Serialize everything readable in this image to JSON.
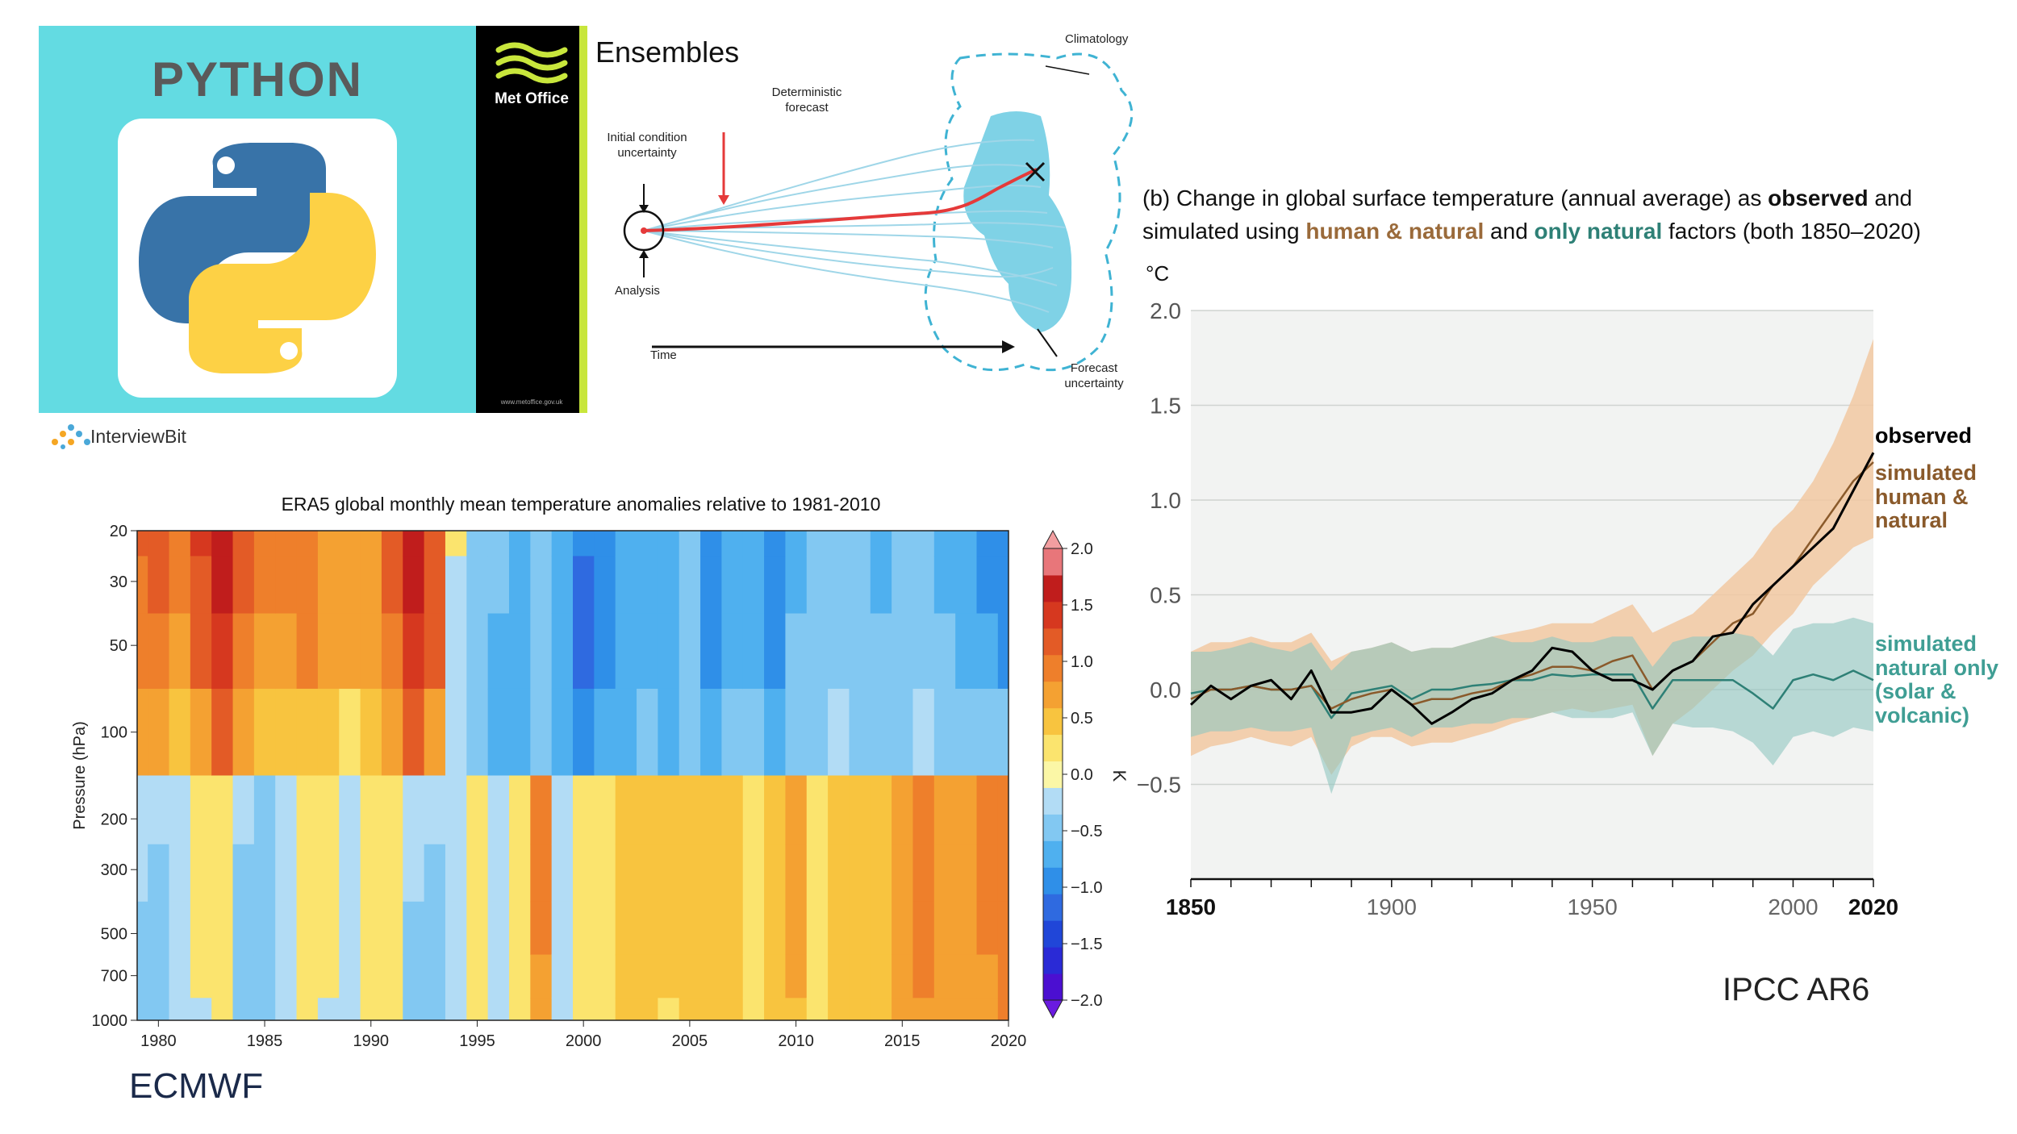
{
  "python_panel": {
    "title": "PYTHON"
  },
  "interviewbit": {
    "brand": "InterviewBit"
  },
  "met_office_panel": {
    "brand": "Met Office",
    "url": "www.metoffice.gov.uk",
    "title": "Ensembles",
    "labels": {
      "climatology": "Climatology",
      "deterministic": "Deterministic forecast",
      "initial": "Initial condition uncertainty",
      "analysis": "Analysis",
      "time": "Time",
      "forecast_uncertainty": "Forecast uncertainty"
    }
  },
  "era5_panel": {
    "source_label": "ECMWF",
    "colorbar_unit": "K"
  },
  "ipcc_panel": {
    "caption_line1_a": "(b) Change in global surface temperature (annual average) as ",
    "caption_line1_b": "observed",
    "caption_line1_c": " and",
    "caption_line2_a": "simulated using ",
    "caption_line2_b": "human & natural",
    "caption_line2_c": " and ",
    "caption_line2_d": "only natural",
    "caption_line2_e": " factors (both 1850–2020)",
    "unit": "°C",
    "legend_observed": "observed",
    "legend_human_1": "simulated",
    "legend_human_2": "human &",
    "legend_human_3": "natural",
    "legend_natural_1": "simulated",
    "legend_natural_2": "natural only",
    "legend_natural_3": "(solar &",
    "legend_natural_4": "volcanic)",
    "source_label": "IPCC AR6"
  },
  "chart_data": [
    {
      "type": "heatmap",
      "title": "ERA5 global monthly mean temperature anomalies relative to 1981-2010",
      "xlabel": "",
      "ylabel": "Pressure (hPa)",
      "xlim": [
        1979,
        2020
      ],
      "xticks": [
        1980,
        1985,
        1990,
        1995,
        2000,
        2005,
        2010,
        2015,
        2020
      ],
      "yticks": [
        20,
        30,
        50,
        100,
        200,
        300,
        500,
        700,
        1000
      ],
      "y_scale": "log",
      "y_inverted": true,
      "colorbar": {
        "label": "K",
        "ticks": [
          2.0,
          1.5,
          1.0,
          0.5,
          0.0,
          -0.5,
          -1.0,
          -1.5,
          -2.0
        ],
        "tick_labels": [
          "2.0",
          "1.5",
          "1.0",
          "0.5",
          "0.0",
          "−0.5",
          "−1.0",
          "−1.5",
          "−2.0"
        ],
        "levels": [
          -2.0,
          -1.75,
          -1.5,
          -1.25,
          -1.0,
          -0.75,
          -0.5,
          -0.25,
          0.0,
          0.25,
          0.5,
          0.75,
          1.0,
          1.25,
          1.5,
          1.75,
          2.0
        ],
        "colors": [
          "#4b0fd1",
          "#2a2ad6",
          "#2046d8",
          "#2f6ae0",
          "#2f8fe8",
          "#4fb0ef",
          "#82c8f2",
          "#b2dcf5",
          "#fbf7a6",
          "#fbe46e",
          "#f8c43f",
          "#f4a132",
          "#ee7f2b",
          "#e35b26",
          "#d6381f",
          "#c01d1c",
          "#e8767a"
        ]
      },
      "years": [
        1979,
        1980,
        1981,
        1982,
        1983,
        1984,
        1985,
        1986,
        1987,
        1988,
        1989,
        1990,
        1991,
        1992,
        1993,
        1994,
        1995,
        1996,
        1997,
        1998,
        1999,
        2000,
        2001,
        2002,
        2003,
        2004,
        2005,
        2006,
        2007,
        2008,
        2009,
        2010,
        2011,
        2012,
        2013,
        2014,
        2015,
        2016,
        2017,
        2018,
        2019,
        2020
      ],
      "levels_hpa": [
        20,
        30,
        50,
        100,
        200,
        300,
        500,
        700,
        1000
      ],
      "anomaly_K_by_year_level": [
        [
          1.0,
          0.9,
          0.8,
          0.5,
          -0.1,
          -0.2,
          -0.3,
          -0.3,
          -0.3
        ],
        [
          1.1,
          1.0,
          0.9,
          0.6,
          -0.1,
          -0.3,
          -0.3,
          -0.3,
          -0.3
        ],
        [
          0.9,
          0.9,
          0.7,
          0.4,
          -0.1,
          -0.2,
          -0.2,
          -0.2,
          -0.2
        ],
        [
          1.3,
          1.2,
          1.0,
          0.6,
          0.1,
          0.1,
          0.0,
          0.0,
          -0.1
        ],
        [
          1.7,
          1.6,
          1.4,
          1.0,
          0.2,
          0.2,
          0.1,
          0.1,
          0.0
        ],
        [
          1.2,
          1.1,
          0.9,
          0.5,
          -0.2,
          -0.3,
          -0.3,
          -0.3,
          -0.3
        ],
        [
          0.9,
          0.8,
          0.7,
          0.3,
          -0.3,
          -0.3,
          -0.3,
          -0.3,
          -0.3
        ],
        [
          0.8,
          0.8,
          0.6,
          0.3,
          -0.2,
          -0.2,
          -0.2,
          -0.2,
          -0.2
        ],
        [
          0.9,
          0.9,
          0.8,
          0.4,
          0.1,
          0.1,
          0.1,
          0.1,
          0.0
        ],
        [
          0.7,
          0.7,
          0.6,
          0.3,
          0.0,
          0.0,
          0.0,
          0.0,
          -0.1
        ],
        [
          0.6,
          0.6,
          0.5,
          0.2,
          -0.2,
          -0.2,
          -0.2,
          -0.2,
          -0.2
        ],
        [
          0.7,
          0.7,
          0.6,
          0.3,
          0.1,
          0.1,
          0.1,
          0.1,
          0.0
        ],
        [
          1.0,
          1.0,
          0.9,
          0.6,
          0.0,
          0.0,
          0.0,
          0.0,
          0.0
        ],
        [
          1.7,
          1.6,
          1.4,
          1.0,
          -0.1,
          -0.2,
          -0.3,
          -0.3,
          -0.3
        ],
        [
          1.2,
          1.1,
          1.0,
          0.7,
          -0.2,
          -0.3,
          -0.3,
          -0.3,
          -0.3
        ],
        [
          0.0,
          -0.1,
          -0.2,
          -0.2,
          -0.2,
          -0.2,
          -0.2,
          -0.2,
          -0.2
        ],
        [
          -0.3,
          -0.3,
          -0.4,
          -0.4,
          0.1,
          0.1,
          0.1,
          0.1,
          0.1
        ],
        [
          -0.5,
          -0.5,
          -0.6,
          -0.6,
          -0.1,
          -0.1,
          -0.1,
          -0.1,
          -0.1
        ],
        [
          -0.6,
          -0.6,
          -0.6,
          -0.6,
          0.1,
          0.1,
          0.1,
          0.1,
          0.1
        ],
        [
          -0.4,
          -0.5,
          -0.5,
          -0.5,
          0.8,
          0.8,
          0.8,
          0.6,
          0.5
        ],
        [
          -0.6,
          -0.7,
          -0.7,
          -0.7,
          -0.1,
          -0.1,
          -0.1,
          -0.1,
          -0.1
        ],
        [
          -1.0,
          -1.1,
          -1.1,
          -1.0,
          0.0,
          0.0,
          0.0,
          0.0,
          0.0
        ],
        [
          -0.8,
          -0.8,
          -0.8,
          -0.7,
          0.2,
          0.2,
          0.2,
          0.2,
          0.2
        ],
        [
          -0.7,
          -0.7,
          -0.7,
          -0.6,
          0.3,
          0.3,
          0.3,
          0.3,
          0.3
        ],
        [
          -0.6,
          -0.6,
          -0.6,
          -0.5,
          0.3,
          0.3,
          0.3,
          0.3,
          0.3
        ],
        [
          -0.7,
          -0.7,
          -0.7,
          -0.6,
          0.3,
          0.3,
          0.3,
          0.3,
          0.2
        ],
        [
          -0.5,
          -0.5,
          -0.5,
          -0.5,
          0.4,
          0.4,
          0.4,
          0.4,
          0.3
        ],
        [
          -0.8,
          -0.8,
          -0.8,
          -0.6,
          0.3,
          0.3,
          0.3,
          0.3,
          0.3
        ],
        [
          -0.6,
          -0.6,
          -0.6,
          -0.5,
          0.3,
          0.3,
          0.3,
          0.3,
          0.3
        ],
        [
          -0.6,
          -0.6,
          -0.6,
          -0.5,
          0.1,
          0.1,
          0.1,
          0.1,
          0.1
        ],
        [
          -0.8,
          -0.8,
          -0.8,
          -0.6,
          0.3,
          0.3,
          0.3,
          0.3,
          0.3
        ],
        [
          -0.6,
          -0.6,
          -0.5,
          -0.4,
          0.5,
          0.5,
          0.5,
          0.5,
          0.4
        ],
        [
          -0.4,
          -0.4,
          -0.4,
          -0.3,
          0.2,
          0.2,
          0.2,
          0.2,
          0.2
        ],
        [
          -0.5,
          -0.5,
          -0.4,
          -0.2,
          0.3,
          0.3,
          0.3,
          0.3,
          0.3
        ],
        [
          -0.5,
          -0.5,
          -0.5,
          -0.3,
          0.4,
          0.4,
          0.4,
          0.3,
          0.3
        ],
        [
          -0.6,
          -0.6,
          -0.5,
          -0.3,
          0.4,
          0.4,
          0.4,
          0.4,
          0.4
        ],
        [
          -0.5,
          -0.5,
          -0.5,
          -0.3,
          0.6,
          0.6,
          0.6,
          0.6,
          0.5
        ],
        [
          -0.5,
          -0.5,
          -0.5,
          -0.2,
          0.9,
          0.9,
          0.9,
          0.8,
          0.7
        ],
        [
          -0.6,
          -0.6,
          -0.5,
          -0.3,
          0.7,
          0.7,
          0.7,
          0.6,
          0.6
        ],
        [
          -0.7,
          -0.7,
          -0.6,
          -0.3,
          0.6,
          0.6,
          0.6,
          0.6,
          0.5
        ],
        [
          -0.8,
          -0.8,
          -0.7,
          -0.3,
          0.8,
          0.8,
          0.8,
          0.7,
          0.7
        ],
        [
          -0.9,
          -0.9,
          -0.8,
          -0.4,
          0.9,
          0.9,
          0.9,
          0.8,
          0.8
        ]
      ]
    },
    {
      "type": "line",
      "title": "(b) Change in global surface temperature (annual average) as observed and simulated using human & natural and only natural factors (both 1850–2020)",
      "xlabel": "",
      "ylabel": "°C",
      "xlim": [
        1850,
        2020
      ],
      "ylim": [
        -1.0,
        2.0
      ],
      "xticks": [
        1850,
        1900,
        1950,
        2000,
        2020
      ],
      "yticks": [
        2.0,
        1.5,
        1.0,
        0.5,
        0.0,
        -0.5
      ],
      "grid": true,
      "legend": "right",
      "colors": {
        "observed": "#000000",
        "human_natural": "#8a5a2b",
        "human_natural_band": "#f2c8a2",
        "natural": "#2e8076",
        "natural_band": "#8fc6c0"
      },
      "x": [
        1850,
        1855,
        1860,
        1865,
        1870,
        1875,
        1880,
        1885,
        1890,
        1895,
        1900,
        1905,
        1910,
        1915,
        1920,
        1925,
        1930,
        1935,
        1940,
        1945,
        1950,
        1955,
        1960,
        1965,
        1970,
        1975,
        1980,
        1985,
        1990,
        1995,
        2000,
        2005,
        2010,
        2015,
        2020
      ],
      "series": [
        {
          "name": "observed",
          "values": [
            -0.08,
            0.02,
            -0.05,
            0.02,
            0.05,
            -0.05,
            0.1,
            -0.12,
            -0.12,
            -0.1,
            0.0,
            -0.08,
            -0.18,
            -0.12,
            -0.05,
            -0.02,
            0.05,
            0.1,
            0.22,
            0.2,
            0.1,
            0.05,
            0.05,
            0.0,
            0.1,
            0.15,
            0.28,
            0.3,
            0.45,
            0.55,
            0.65,
            0.75,
            0.85,
            1.05,
            1.25
          ]
        },
        {
          "name": "simulated human & natural",
          "values": [
            -0.05,
            0.0,
            0.0,
            0.02,
            0.0,
            0.0,
            0.02,
            -0.1,
            -0.05,
            -0.02,
            0.0,
            -0.08,
            -0.05,
            -0.05,
            -0.02,
            0.0,
            0.05,
            0.08,
            0.12,
            0.12,
            0.1,
            0.15,
            0.18,
            0.0,
            0.1,
            0.15,
            0.25,
            0.35,
            0.4,
            0.55,
            0.65,
            0.8,
            0.95,
            1.1,
            1.2
          ]
        },
        {
          "name": "simulated natural only (solar & volcanic)",
          "values": [
            -0.02,
            0.0,
            0.0,
            0.02,
            0.0,
            0.0,
            0.02,
            -0.15,
            -0.02,
            0.0,
            0.02,
            -0.05,
            0.0,
            0.0,
            0.02,
            0.03,
            0.05,
            0.05,
            0.08,
            0.07,
            0.08,
            0.08,
            0.08,
            -0.1,
            0.05,
            0.05,
            0.05,
            0.05,
            -0.02,
            -0.1,
            0.05,
            0.08,
            0.05,
            0.1,
            0.05
          ]
        }
      ],
      "band_human_natural": {
        "lower": [
          -0.35,
          -0.3,
          -0.28,
          -0.25,
          -0.28,
          -0.3,
          -0.25,
          -0.45,
          -0.3,
          -0.25,
          -0.25,
          -0.3,
          -0.28,
          -0.28,
          -0.25,
          -0.22,
          -0.18,
          -0.15,
          -0.12,
          -0.1,
          -0.12,
          -0.1,
          -0.08,
          -0.35,
          -0.18,
          -0.1,
          0.0,
          0.1,
          0.18,
          0.3,
          0.4,
          0.55,
          0.65,
          0.75,
          0.8
        ],
        "upper": [
          0.2,
          0.25,
          0.25,
          0.28,
          0.25,
          0.25,
          0.3,
          0.15,
          0.2,
          0.22,
          0.25,
          0.2,
          0.22,
          0.22,
          0.25,
          0.28,
          0.3,
          0.32,
          0.35,
          0.35,
          0.35,
          0.4,
          0.45,
          0.3,
          0.35,
          0.4,
          0.5,
          0.6,
          0.7,
          0.85,
          0.95,
          1.1,
          1.3,
          1.55,
          1.85
        ]
      },
      "band_natural": {
        "lower": [
          -0.25,
          -0.22,
          -0.22,
          -0.2,
          -0.22,
          -0.22,
          -0.2,
          -0.55,
          -0.25,
          -0.22,
          -0.2,
          -0.25,
          -0.2,
          -0.2,
          -0.18,
          -0.18,
          -0.15,
          -0.15,
          -0.12,
          -0.15,
          -0.15,
          -0.15,
          -0.12,
          -0.35,
          -0.18,
          -0.2,
          -0.2,
          -0.22,
          -0.28,
          -0.4,
          -0.25,
          -0.22,
          -0.25,
          -0.2,
          -0.22
        ],
        "upper": [
          0.2,
          0.2,
          0.22,
          0.25,
          0.22,
          0.2,
          0.25,
          0.1,
          0.2,
          0.22,
          0.25,
          0.2,
          0.22,
          0.22,
          0.25,
          0.28,
          0.25,
          0.25,
          0.28,
          0.25,
          0.25,
          0.28,
          0.28,
          0.12,
          0.25,
          0.28,
          0.28,
          0.3,
          0.28,
          0.18,
          0.32,
          0.35,
          0.35,
          0.38,
          0.35
        ]
      }
    }
  ]
}
